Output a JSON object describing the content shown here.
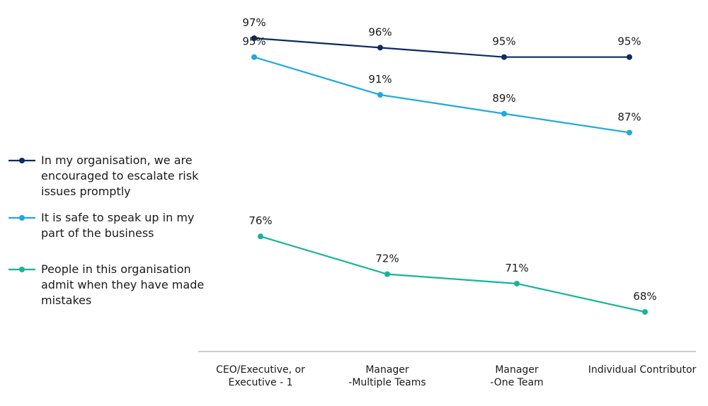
{
  "chart_data": {
    "type": "line",
    "categories": [
      "CEO/Executive, or\nExecutive - 1",
      "Manager\n-Multiple Teams",
      "Manager\n-One Team",
      "Individual Contributor"
    ],
    "series": [
      {
        "name": "In my organisation, we are encouraged to escalate risk issues promptly",
        "color": "#0c2a63",
        "values": [
          97,
          96,
          95,
          95
        ],
        "value_labels": [
          "97%",
          "96%",
          "95%",
          "95%"
        ]
      },
      {
        "name": "It is safe to speak up in my part of the business",
        "color": "#1ea8e0",
        "values": [
          95,
          91,
          89,
          87
        ],
        "value_labels": [
          "95%",
          "91%",
          "89%",
          "87%"
        ]
      },
      {
        "name": "People in this organisation admit when they have made mistakes",
        "color": "#17b39b",
        "values": [
          76,
          72,
          71,
          68
        ],
        "value_labels": [
          "76%",
          "72%",
          "71%",
          "68%"
        ]
      }
    ],
    "legend": "left"
  }
}
